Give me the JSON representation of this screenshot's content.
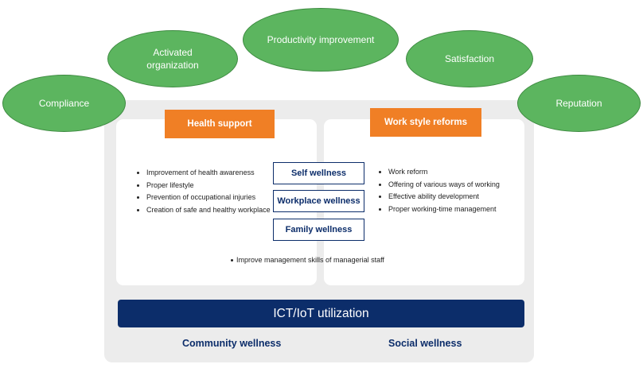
{
  "ellipses": {
    "compliance": "Compliance",
    "activated": "Activated\norganization",
    "productivity": "Productivity improvement",
    "satisfaction": "Satisfaction",
    "reputation": "Reputation"
  },
  "headers": {
    "health": "Health support",
    "work": "Work style reforms"
  },
  "wellness": {
    "self": "Self wellness",
    "workplace": "Workplace wellness",
    "family": "Family wellness"
  },
  "health_items": [
    "Improvement of health awareness",
    "Proper lifestyle",
    "Prevention of occupational injuries",
    "Creation of safe and healthy workplace"
  ],
  "work_items": [
    "Work reform",
    "Offering of various ways of working",
    "Effective ability development",
    "Proper working-time management"
  ],
  "center_note": "Improve management skills of managerial staff",
  "bar": "ICT/IoT utilization",
  "bottom": {
    "community": "Community wellness",
    "social": "Social wellness"
  }
}
